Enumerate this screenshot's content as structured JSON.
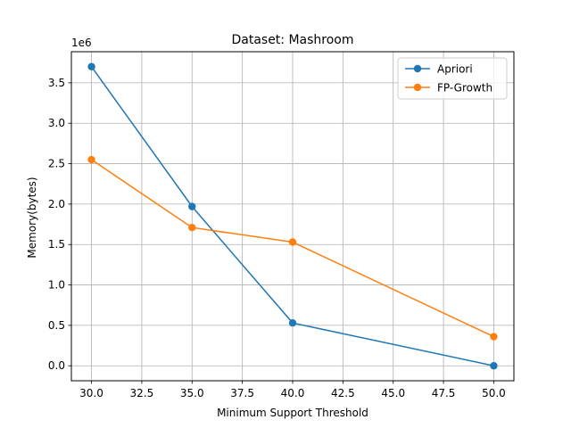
{
  "chart_data": {
    "type": "line",
    "title": "Dataset: Mashroom",
    "xlabel": "Minimum Support Threshold",
    "ylabel": "Memory(bytes)",
    "y_offset_label": "1e6",
    "x": [
      30,
      35,
      40,
      50
    ],
    "series": [
      {
        "name": "Apriori",
        "color": "#1f77b4",
        "values": [
          3.7,
          1.97,
          0.53,
          0.0
        ]
      },
      {
        "name": "FP-Growth",
        "color": "#ff7f0e",
        "values": [
          2.55,
          1.71,
          1.53,
          0.36
        ]
      }
    ],
    "xlim": [
      29.0,
      51.0
    ],
    "ylim": [
      -0.185,
      3.885
    ],
    "xticks": [
      30.0,
      32.5,
      35.0,
      37.5,
      40.0,
      42.5,
      45.0,
      47.5,
      50.0
    ],
    "xtick_labels": [
      "30.0",
      "32.5",
      "35.0",
      "37.5",
      "40.0",
      "42.5",
      "45.0",
      "47.5",
      "50.0"
    ],
    "yticks": [
      0.0,
      0.5,
      1.0,
      1.5,
      2.0,
      2.5,
      3.0,
      3.5
    ],
    "ytick_labels": [
      "0.0",
      "0.5",
      "1.0",
      "1.5",
      "2.0",
      "2.5",
      "3.0",
      "3.5"
    ],
    "grid": true,
    "legend_position": "top-right"
  }
}
